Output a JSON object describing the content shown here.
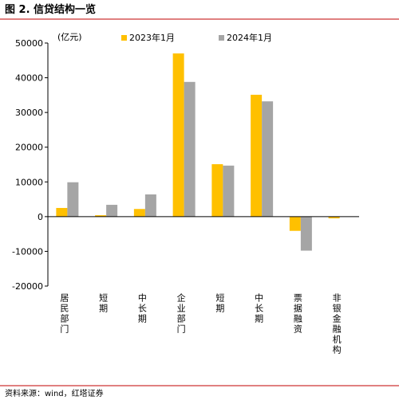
{
  "chart_data": {
    "type": "bar",
    "title": "图 2. 信贷结构一览",
    "unit": "(亿元)",
    "source": "资料来源：wind，红塔证券",
    "categories": [
      "居民部门",
      "短期",
      "中长期",
      "企业部门",
      "短期",
      "中长期",
      "票据融资",
      "非银金融机构"
    ],
    "series": [
      {
        "name": "2023年1月",
        "color": "#ffc000",
        "values": [
          2500,
          400,
          2200,
          47000,
          15100,
          35100,
          -4100,
          -500
        ]
      },
      {
        "name": "2024年1月",
        "color": "#a5a5a5",
        "values": [
          9900,
          3400,
          6400,
          38800,
          14700,
          33200,
          -9800,
          0
        ]
      }
    ],
    "ylim": [
      -20000,
      50000
    ],
    "yticks": [
      -20000,
      -10000,
      0,
      10000,
      20000,
      30000,
      40000,
      50000
    ]
  }
}
